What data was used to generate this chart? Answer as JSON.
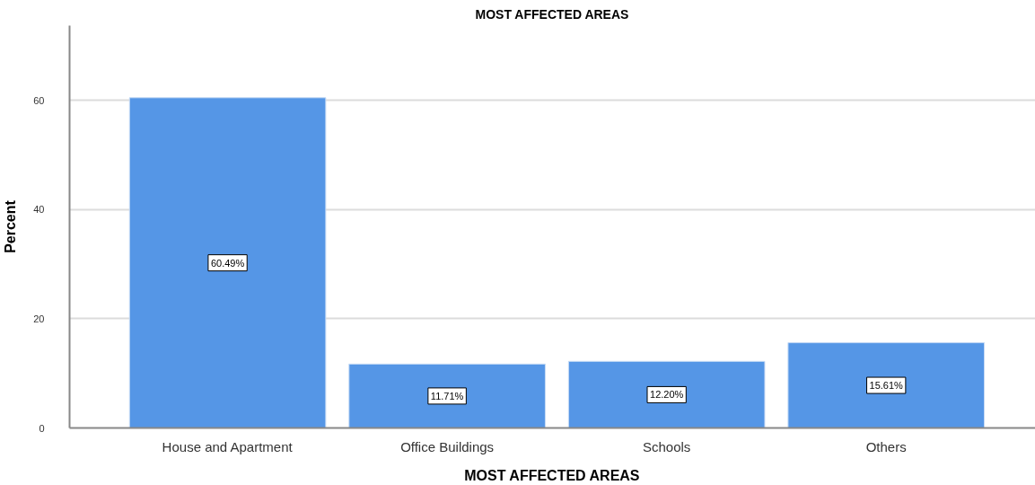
{
  "chart_data": {
    "type": "bar",
    "title": "MOST AFFECTED AREAS",
    "xlabel": "MOST AFFECTED AREAS",
    "ylabel": "Percent",
    "categories": [
      "House and Apartment",
      "Office Buildings",
      "Schools",
      "Others"
    ],
    "values": [
      60.49,
      11.71,
      12.2,
      15.61
    ],
    "color": "#5596e6",
    "value_labels": [
      "60.49%",
      "11.71%",
      "12.20%",
      "15.61%"
    ],
    "ylim": [
      0,
      73.7
    ],
    "yticks": [
      0,
      20,
      40,
      60
    ],
    "grid": "y"
  }
}
